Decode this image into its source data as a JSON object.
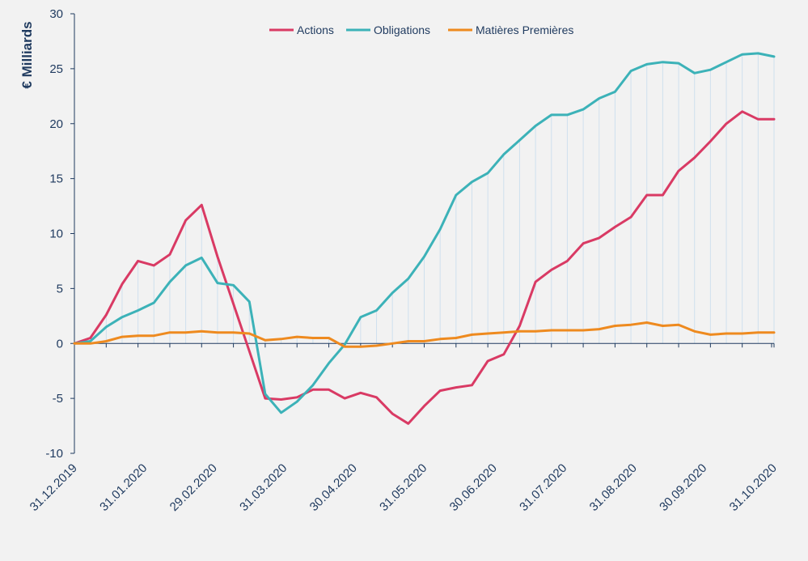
{
  "chart_data": {
    "type": "line",
    "title": "",
    "ylabel": "€ Milliards",
    "xlabel": "",
    "ylim": [
      -10,
      30
    ],
    "yticks": [
      -10,
      -5,
      0,
      5,
      10,
      15,
      20,
      25,
      30
    ],
    "ytick_labels": [
      "-10",
      "-5",
      "0",
      "5",
      "10",
      "15",
      "20",
      "25",
      "30"
    ],
    "xtick_labels": [
      "31.12.2019",
      "31.01.2020",
      "29.02.2020",
      "31.03.2020",
      "30.04.2020",
      "31.05.2020",
      "30.06.2020",
      "31.07.2020",
      "31.08.2020",
      "30.09.2020",
      "31.10.2020"
    ],
    "n_points": 45,
    "grid": "vertical dropline bands",
    "legend_position": "top-center",
    "colors": {
      "background": "#f2f2f2",
      "axis": "#1f3a5f",
      "band": "#cfe0ee"
    },
    "series": [
      {
        "name": "Actions",
        "color": "#d93a64",
        "values": [
          0,
          0.5,
          2.6,
          5.4,
          7.5,
          7.1,
          8.1,
          11.2,
          12.6,
          7.9,
          3.6,
          -0.7,
          -5.0,
          -5.1,
          -4.9,
          -4.2,
          -4.2,
          -5.0,
          -4.5,
          -4.9,
          -6.4,
          -7.3,
          -5.7,
          -4.3,
          -4.0,
          -3.8,
          -1.6,
          -1.0,
          1.6,
          5.6,
          6.7,
          7.5,
          9.1,
          9.6,
          10.6,
          11.5,
          13.5,
          13.5,
          15.7,
          16.9,
          18.4,
          20.0,
          21.1,
          20.4,
          20.4
        ]
      },
      {
        "name": "Obligations",
        "color": "#3cb2b8",
        "values": [
          0,
          0.2,
          1.5,
          2.4,
          3.0,
          3.7,
          5.6,
          7.1,
          7.8,
          5.5,
          5.3,
          3.8,
          -4.6,
          -6.3,
          -5.3,
          -3.8,
          -1.8,
          -0.1,
          2.4,
          3.0,
          4.6,
          5.9,
          7.9,
          10.4,
          13.5,
          14.7,
          15.5,
          17.2,
          18.5,
          19.8,
          20.8,
          20.8,
          21.3,
          22.3,
          22.9,
          24.8,
          25.4,
          25.6,
          25.5,
          24.6,
          24.9,
          25.6,
          26.3,
          26.4,
          26.1
        ]
      },
      {
        "name": "Matières Premières",
        "color": "#ee8a1f",
        "values": [
          0,
          0.0,
          0.2,
          0.6,
          0.7,
          0.7,
          1.0,
          1.0,
          1.1,
          1.0,
          1.0,
          0.9,
          0.3,
          0.4,
          0.6,
          0.5,
          0.5,
          -0.3,
          -0.3,
          -0.2,
          0.0,
          0.2,
          0.2,
          0.4,
          0.5,
          0.8,
          0.9,
          1.0,
          1.1,
          1.1,
          1.2,
          1.2,
          1.2,
          1.3,
          1.6,
          1.7,
          1.9,
          1.6,
          1.7,
          1.1,
          0.8,
          0.9,
          0.9,
          1.0,
          1.0
        ]
      }
    ]
  }
}
